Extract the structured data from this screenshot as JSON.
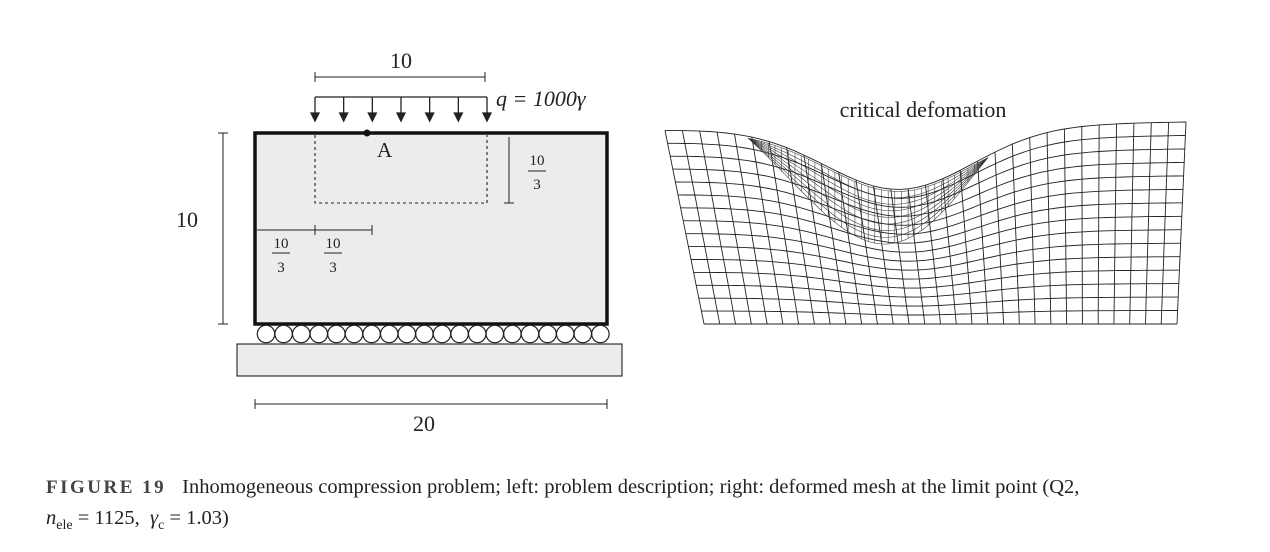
{
  "figure": {
    "left_panel": {
      "dim_top_width": "10",
      "load_label": "q = 1000γ",
      "point_label": "A",
      "dim_height": "10",
      "frac_right": {
        "num": "10",
        "den": "3"
      },
      "frac_left_1": {
        "num": "10",
        "den": "3"
      },
      "frac_left_2": {
        "num": "10",
        "den": "3"
      },
      "dim_bottom_width": "20"
    },
    "right_panel": {
      "title": "critical defomation"
    }
  },
  "caption": {
    "label": "FIGURE 19",
    "text": "Inhomogeneous compression problem; left: problem description; right: deformed mesh at the limit point (Q2,",
    "n_symbol": "n",
    "n_sub": "ele",
    "n_value": " = 1125,",
    "gamma_symbol": "γ",
    "gamma_sub": "c",
    "gamma_value": " = 1.03)"
  }
}
